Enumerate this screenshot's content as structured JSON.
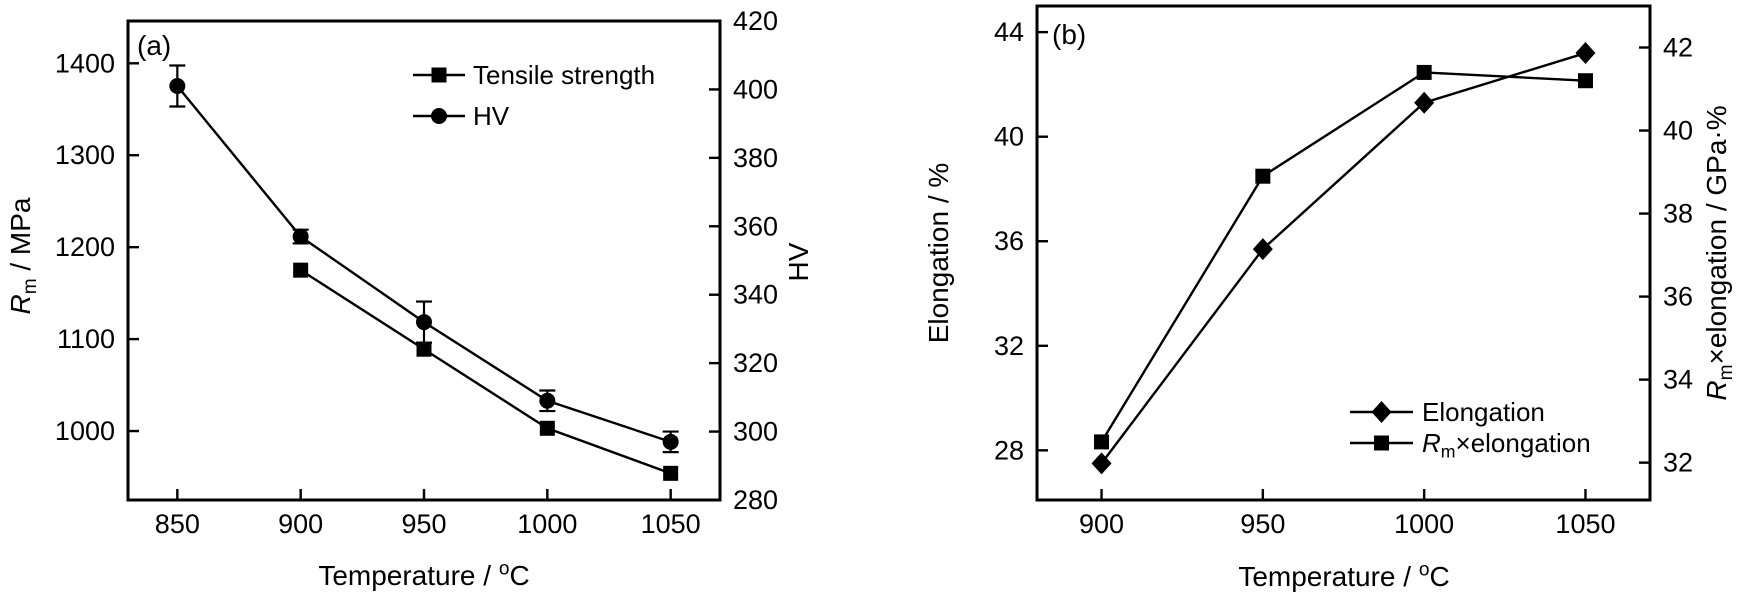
{
  "figure": {
    "colors": {
      "background": "#ffffff",
      "foreground": "#000000"
    },
    "panels": [
      "(a)",
      "(b)"
    ]
  },
  "chart_data": [
    {
      "id": "a",
      "type": "line",
      "panel_label": "(a)",
      "xlabel": "Temperature / °C",
      "xlabel_parts": [
        {
          "t": "Temperature / "
        },
        {
          "t": "o",
          "style": "sup"
        },
        {
          "t": "C"
        }
      ],
      "ylabel_left": "Rm / MPa",
      "ylabel_left_parts": [
        {
          "t": "R",
          "style": "italic"
        },
        {
          "t": "m",
          "style": "sub"
        },
        {
          "t": " / MPa"
        }
      ],
      "ylabel_right": "HV",
      "ylabel_right_parts": [
        {
          "t": "HV"
        }
      ],
      "xlim": [
        830,
        1070
      ],
      "xticks": [
        850,
        900,
        950,
        1000,
        1050
      ],
      "ylim_left": [
        925,
        1446
      ],
      "yticks_left": [
        1000,
        1100,
        1200,
        1300,
        1400
      ],
      "ylim_right": [
        280,
        420
      ],
      "yticks_right": [
        280,
        300,
        320,
        340,
        360,
        380,
        400,
        420
      ],
      "grid": false,
      "legend_position": "upper-right-inside",
      "series": [
        {
          "name": "Tensile strength",
          "label_parts": [
            {
              "t": "Tensile strength"
            }
          ],
          "axis": "left",
          "marker": "square",
          "x": [
            900,
            950,
            1000,
            1050
          ],
          "y": [
            1175,
            1089,
            1003,
            954
          ]
        },
        {
          "name": "HV",
          "label_parts": [
            {
              "t": "HV"
            }
          ],
          "axis": "right",
          "marker": "circle",
          "x": [
            850,
            900,
            950,
            1000,
            1050
          ],
          "y": [
            401,
            357,
            332,
            309,
            297
          ],
          "yerr": [
            6,
            2,
            6,
            3,
            3
          ]
        }
      ]
    },
    {
      "id": "b",
      "type": "line",
      "panel_label": "(b)",
      "xlabel": "Temperature  / °C",
      "xlabel_parts": [
        {
          "t": "Temperature  / "
        },
        {
          "t": "o",
          "style": "sup"
        },
        {
          "t": "C"
        }
      ],
      "ylabel_left": "Elongation / %",
      "ylabel_left_parts": [
        {
          "t": "Elongation / %"
        }
      ],
      "ylabel_right": "Rm×elongation / GPa·%",
      "ylabel_right_parts": [
        {
          "t": "R",
          "style": "italic"
        },
        {
          "t": "m",
          "style": "sub"
        },
        {
          "t": "×elongation / GPa·%"
        }
      ],
      "xlim": [
        880,
        1070
      ],
      "xticks": [
        900,
        950,
        1000,
        1050
      ],
      "ylim_left": [
        26.1,
        45.0
      ],
      "yticks_left": [
        28,
        32,
        36,
        40,
        44
      ],
      "ylim_right": [
        31.1,
        43.0
      ],
      "yticks_right": [
        32,
        34,
        36,
        38,
        40,
        42
      ],
      "grid": false,
      "legend_position": "lower-right-inside",
      "series": [
        {
          "name": "Elongation",
          "label_parts": [
            {
              "t": "Elongation"
            }
          ],
          "axis": "left",
          "marker": "diamond",
          "x": [
            900,
            950,
            1000,
            1050
          ],
          "y": [
            27.5,
            35.7,
            41.3,
            43.2
          ]
        },
        {
          "name": "Rm×elongation",
          "label_parts": [
            {
              "t": "R",
              "style": "italic"
            },
            {
              "t": "m",
              "style": "sub"
            },
            {
              "t": "×elongation"
            }
          ],
          "axis": "right",
          "marker": "square",
          "x": [
            900,
            950,
            1000,
            1050
          ],
          "y": [
            32.5,
            38.9,
            41.4,
            41.2
          ]
        }
      ]
    }
  ]
}
